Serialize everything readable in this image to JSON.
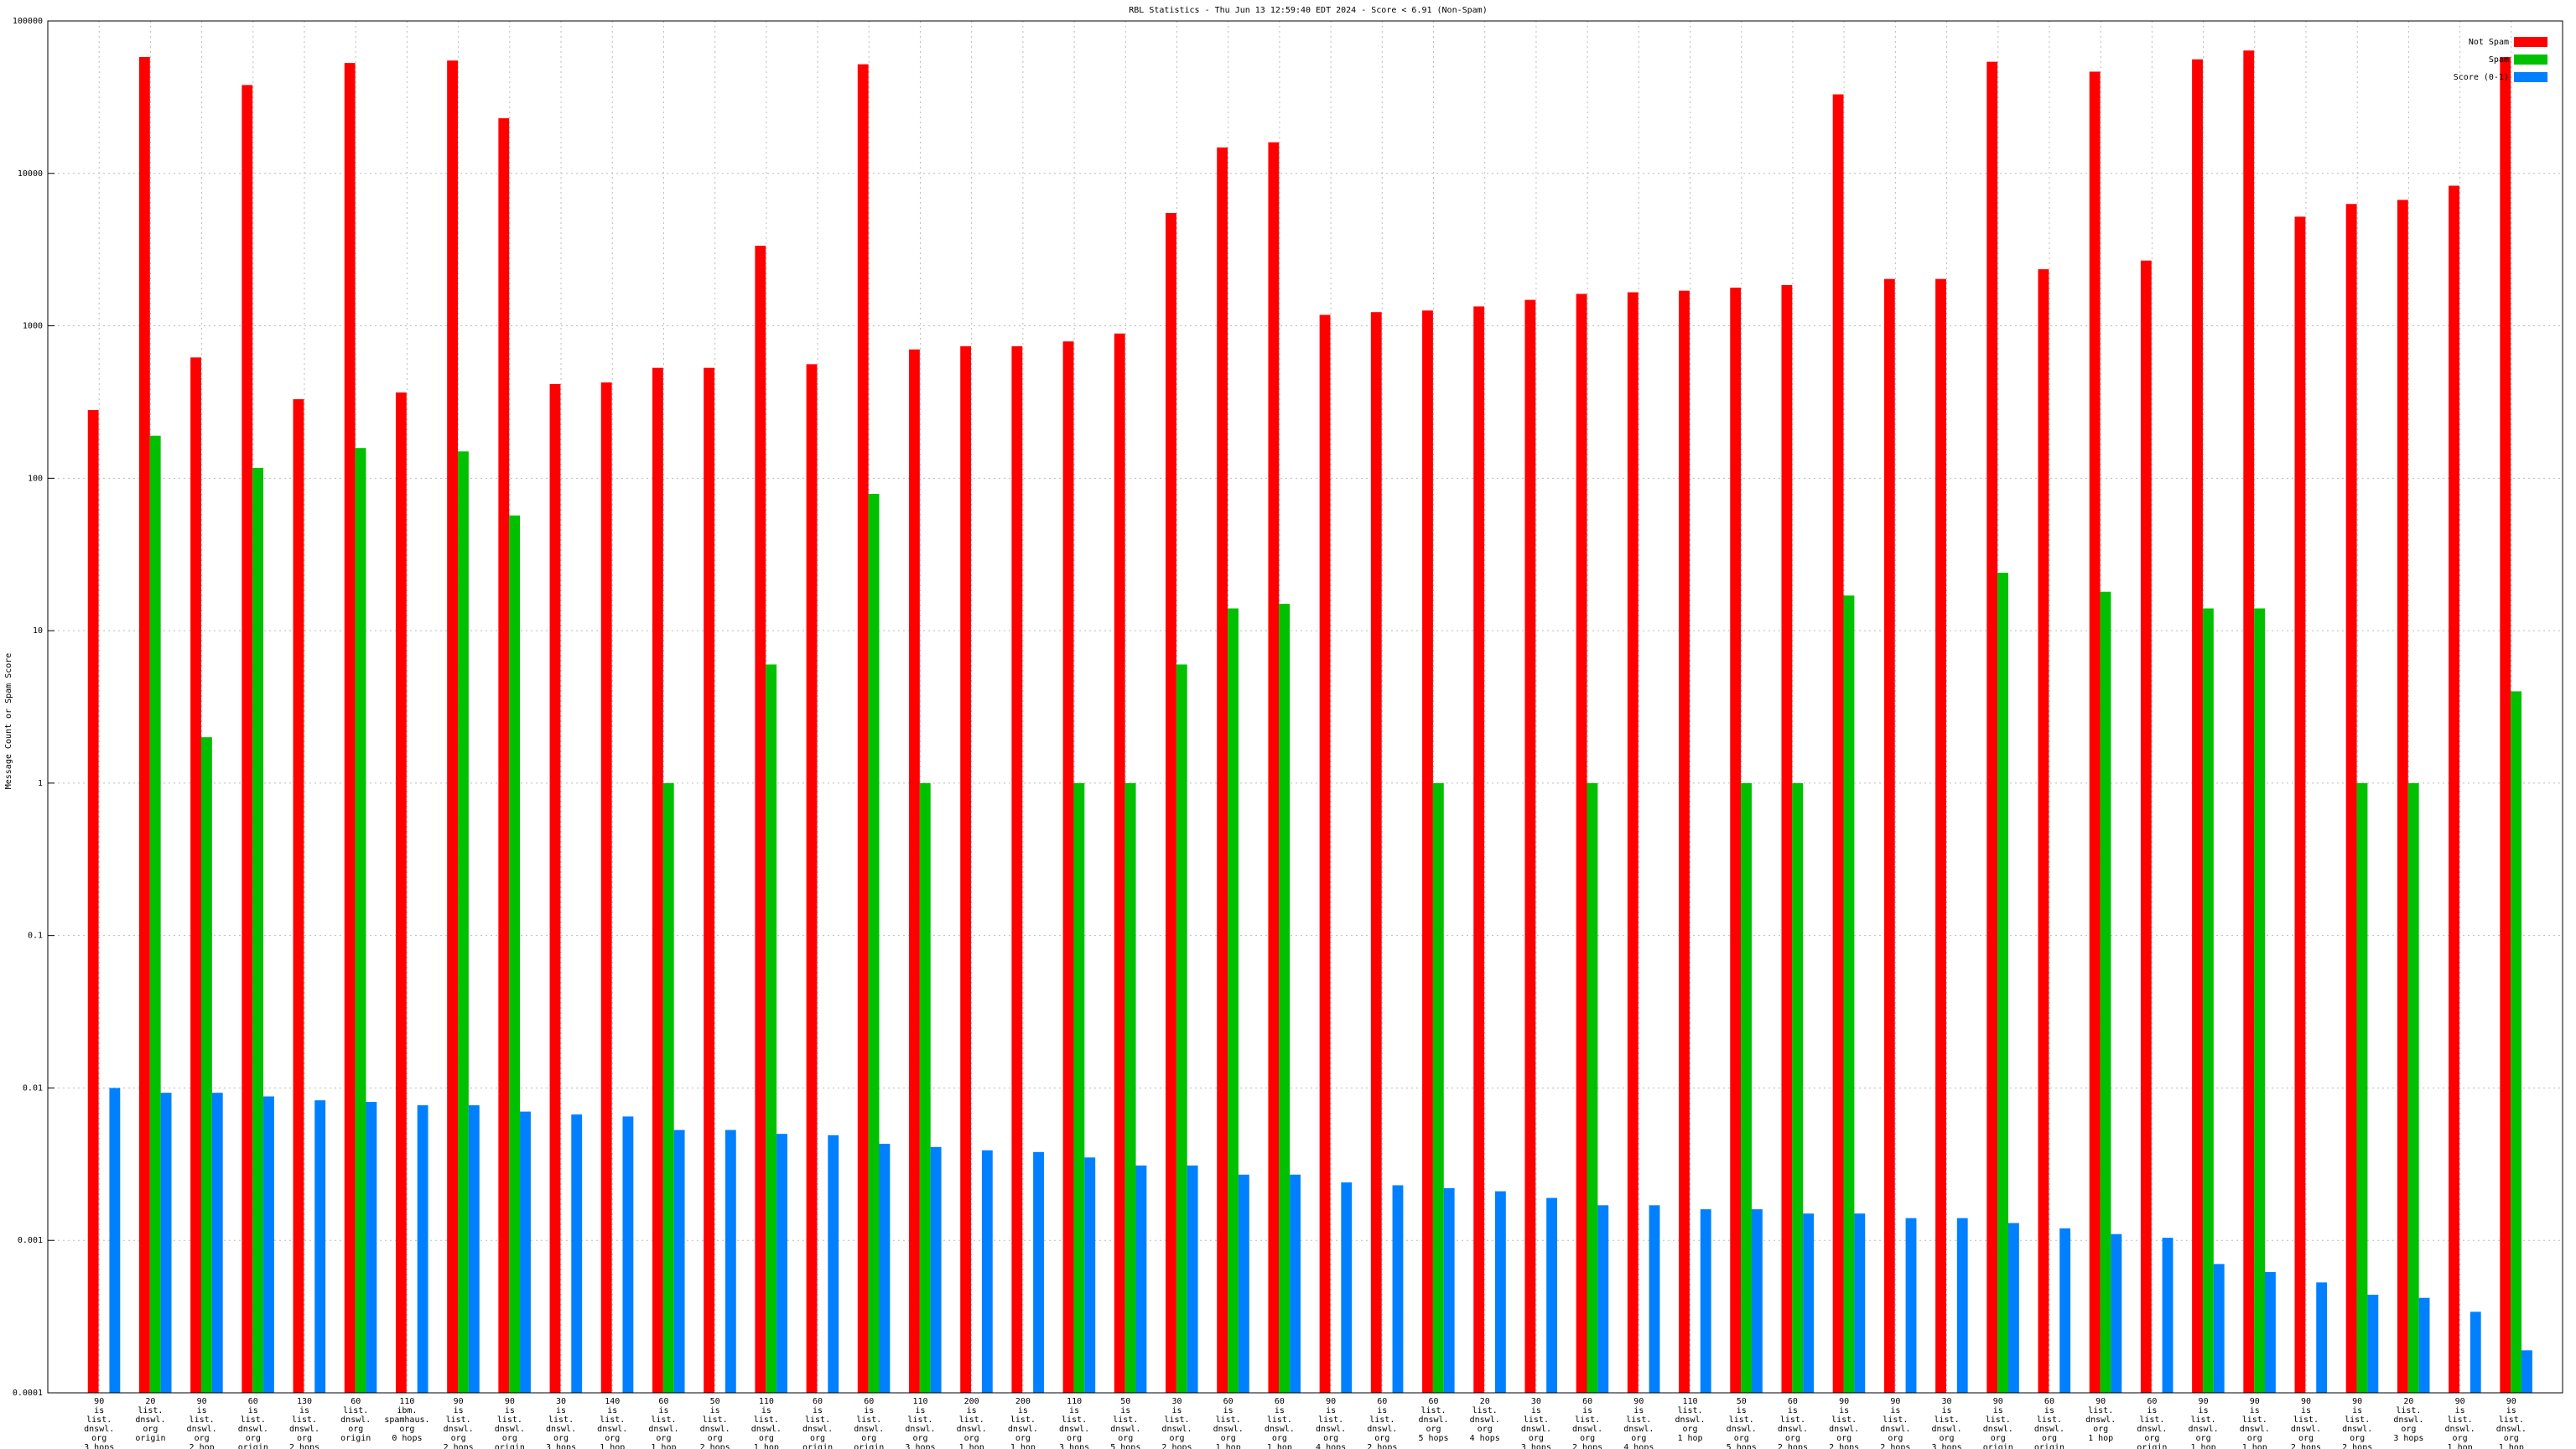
{
  "chart_data": {
    "type": "bar",
    "title": "RBL Statistics - Thu Jun 13 12:59:40 EDT 2024 - Score < 6.91 (Non-Spam)",
    "y_label": "Message Count or Spam Score",
    "log_y": true,
    "grid": true,
    "legend": "top-right",
    "ylim": [
      0.0001,
      100000
    ],
    "yticks": [
      0.0001,
      0.001,
      0.01,
      0.1,
      1,
      10,
      100,
      1000,
      10000,
      100000
    ],
    "categories": [
      "90\nis\nlist.\ndnswl.\norg\n3 hops",
      "20\nlist.\ndnswl.\norg\norigin",
      "90\nis\nlist.\ndnswl.\norg\n2 hop",
      "60\nis\nlist.\ndnswl.\norg\norigin",
      "130\nis\nlist.\ndnswl.\norg\n2 hops",
      "60\nlist.\ndnswl.\norg\norigin",
      "110\nibm.\nspamhaus.\norg\n0 hops",
      "90\nis\nlist.\ndnswl.\norg\n2 hops",
      "90\nis\nlist.\ndnswl.\norg\norigin",
      "30\nis\nlist.\ndnswl.\norg\n3 hops",
      "140\nis\nlist.\ndnswl.\norg\n1 hop",
      "60\nis\nlist.\ndnswl.\norg\n1 hop",
      "50\nis\nlist.\ndnswl.\norg\n2 hops",
      "110\nis\nlist.\ndnswl.\norg\n1 hop",
      "60\nis\nlist.\ndnswl.\norg\norigin",
      "60\nis\nlist.\ndnswl.\norg\norigin",
      "110\nis\nlist.\ndnswl.\norg\n3 hops",
      "200\nis\nlist.\ndnswl.\norg\n1 hop",
      "200\nis\nlist.\ndnswl.\norg\n1 hop",
      "110\nis\nlist.\ndnswl.\norg\n3 hops",
      "50\nis\nlist.\ndnswl.\norg\n5 hops",
      "30\nis\nlist.\ndnswl.\norg\n2 hops",
      "60\nis\nlist.\ndnswl.\norg\n1 hop",
      "60\nis\nlist.\ndnswl.\norg\n1 hop",
      "90\nis\nlist.\ndnswl.\norg\n4 hops",
      "60\nis\nlist.\ndnswl.\norg\n2 hops",
      "60\nlist.\ndnswl.\norg\n5 hops",
      "20\nlist.\ndnswl.\norg\n4 hops",
      "30\nis\nlist.\ndnswl.\norg\n3 hops",
      "60\nis\nlist.\ndnswl.\norg\n2 hops",
      "90\nis\nlist.\ndnswl.\norg\n4 hops",
      "110\nlist.\ndnswl.\norg\n1 hop",
      "50\nis\nlist.\ndnswl.\norg\n5 hops",
      "60\nis\nlist.\ndnswl.\norg\n2 hops",
      "90\nis\nlist.\ndnswl.\norg\n2 hops",
      "90\nis\nlist.\ndnswl.\norg\n2 hops",
      "30\nis\nlist.\ndnswl.\norg\n3 hops",
      "90\nis\nlist.\ndnswl.\norg\norigin",
      "60\nis\nlist.\ndnswl.\norg\norigin",
      "90\nlist.\ndnswl.\norg\n1 hop",
      "60\nis\nlist.\ndnswl.\norg\norigin",
      "90\nis\nlist.\ndnswl.\norg\n1 hop",
      "90\nis\nlist.\ndnswl.\norg\n1 hop",
      "90\nis\nlist.\ndnswl.\norg\n2 hops",
      "90\nis\nlist.\ndnswl.\norg\n2 hops",
      "20\nlist.\ndnswl.\norg\n3 hops",
      "90\nis\nlist.\ndnswl.\norg\n1 hop",
      "90\nis\nlist.\ndnswl.\norg\n1 hop"
    ],
    "series": [
      {
        "name": "Not Spam",
        "color": "#ff0000",
        "values": [
          280,
          58000,
          620,
          38000,
          330,
          53000,
          365,
          55000,
          23000,
          415,
          425,
          530,
          530,
          3350,
          560,
          52000,
          700,
          735,
          735,
          790,
          890,
          5500,
          14800,
          16000,
          1180,
          1230,
          1260,
          1340,
          1480,
          1620,
          1660,
          1700,
          1780,
          1850,
          33000,
          2030,
          2030,
          54000,
          2350,
          46500,
          2680,
          56000,
          64000,
          5200,
          6300,
          6700,
          8300,
          58000
        ]
      },
      {
        "name": "Spam",
        "color": "#00c000",
        "values": [
          null,
          190,
          2,
          117,
          null,
          158,
          null,
          150,
          57,
          null,
          null,
          1,
          null,
          6,
          null,
          79,
          1,
          null,
          null,
          1,
          1,
          6,
          14,
          15,
          null,
          null,
          1,
          null,
          null,
          1,
          null,
          null,
          1,
          1,
          17,
          null,
          null,
          24,
          null,
          18,
          null,
          14,
          14,
          null,
          1,
          1,
          null,
          4
        ]
      },
      {
        "name": "Score (0-1)",
        "color": "#0080ff",
        "values": [
          0.01,
          0.0093,
          0.0093,
          0.0088,
          0.0083,
          0.0081,
          0.0077,
          0.0077,
          0.007,
          0.0067,
          0.0065,
          0.0053,
          0.0053,
          0.005,
          0.0049,
          0.0043,
          0.0041,
          0.0039,
          0.0038,
          0.0035,
          0.0031,
          0.0031,
          0.0027,
          0.0027,
          0.0024,
          0.0023,
          0.0022,
          0.0021,
          0.0019,
          0.0017,
          0.0017,
          0.0016,
          0.0016,
          0.0015,
          0.0015,
          0.0014,
          0.0014,
          0.0013,
          0.0012,
          0.0011,
          0.00104,
          0.0007,
          0.00062,
          0.00053,
          0.00044,
          0.00042,
          0.00034,
          0.00019
        ]
      }
    ]
  }
}
